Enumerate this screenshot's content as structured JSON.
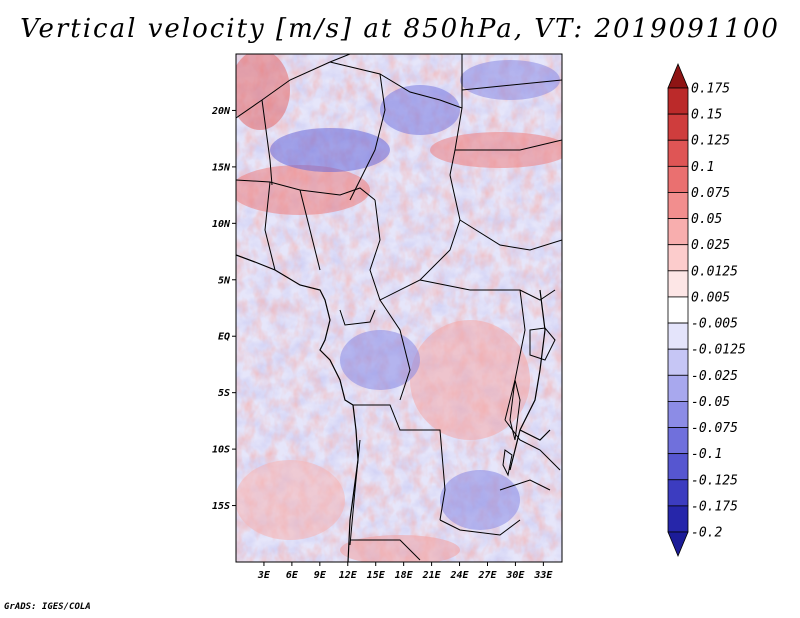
{
  "title": "Vertical velocity [m/s] at 850hPa, VT: 2019091100",
  "credit": "GrADS: IGES/COLA",
  "map": {
    "variable": "Vertical velocity",
    "units": "m/s",
    "level": "850hPa",
    "valid_time": "2019091100",
    "lon_range": [
      0,
      35
    ],
    "lat_range": [
      -20,
      25
    ],
    "lon_ticks": [
      {
        "value": 3,
        "label": "3E"
      },
      {
        "value": 6,
        "label": "6E"
      },
      {
        "value": 9,
        "label": "9E"
      },
      {
        "value": 12,
        "label": "12E"
      },
      {
        "value": 15,
        "label": "15E"
      },
      {
        "value": 18,
        "label": "18E"
      },
      {
        "value": 21,
        "label": "21E"
      },
      {
        "value": 24,
        "label": "24E"
      },
      {
        "value": 27,
        "label": "27E"
      },
      {
        "value": 30,
        "label": "30E"
      },
      {
        "value": 33,
        "label": "33E"
      }
    ],
    "lat_ticks": [
      {
        "value": 20,
        "label": "20N"
      },
      {
        "value": 15,
        "label": "15N"
      },
      {
        "value": 10,
        "label": "10N"
      },
      {
        "value": 5,
        "label": "5N"
      },
      {
        "value": 0,
        "label": "EQ"
      },
      {
        "value": -5,
        "label": "5S"
      },
      {
        "value": -10,
        "label": "10S"
      },
      {
        "value": -15,
        "label": "15S"
      }
    ]
  },
  "colorbar": {
    "levels": [
      {
        "label": "0.175",
        "color": "#a51e1e"
      },
      {
        "label": "0.15",
        "color": "#bb2a2a"
      },
      {
        "label": "0.125",
        "color": "#cf3d3d"
      },
      {
        "label": "0.1",
        "color": "#df5555"
      },
      {
        "label": "0.075",
        "color": "#ea7070"
      },
      {
        "label": "0.05",
        "color": "#f28e8e"
      },
      {
        "label": "0.025",
        "color": "#f8aeae"
      },
      {
        "label": "0.0125",
        "color": "#fccccc"
      },
      {
        "label": "0.005",
        "color": "#fde6e6"
      },
      {
        "label": "-0.005",
        "color": "#ffffff"
      },
      {
        "label": "-0.0125",
        "color": "#e4e4fb"
      },
      {
        "label": "-0.025",
        "color": "#c6c6f5"
      },
      {
        "label": "-0.05",
        "color": "#a8a8ee"
      },
      {
        "label": "-0.075",
        "color": "#8c8ce6"
      },
      {
        "label": "-0.1",
        "color": "#7070dc"
      },
      {
        "label": "-0.125",
        "color": "#5656d0"
      },
      {
        "label": "-0.175",
        "color": "#3c3cc0"
      },
      {
        "label": "-0.2",
        "color": "#2626aa"
      }
    ],
    "top_color": "#8e1414",
    "bottom_color": "#1c1c98"
  }
}
